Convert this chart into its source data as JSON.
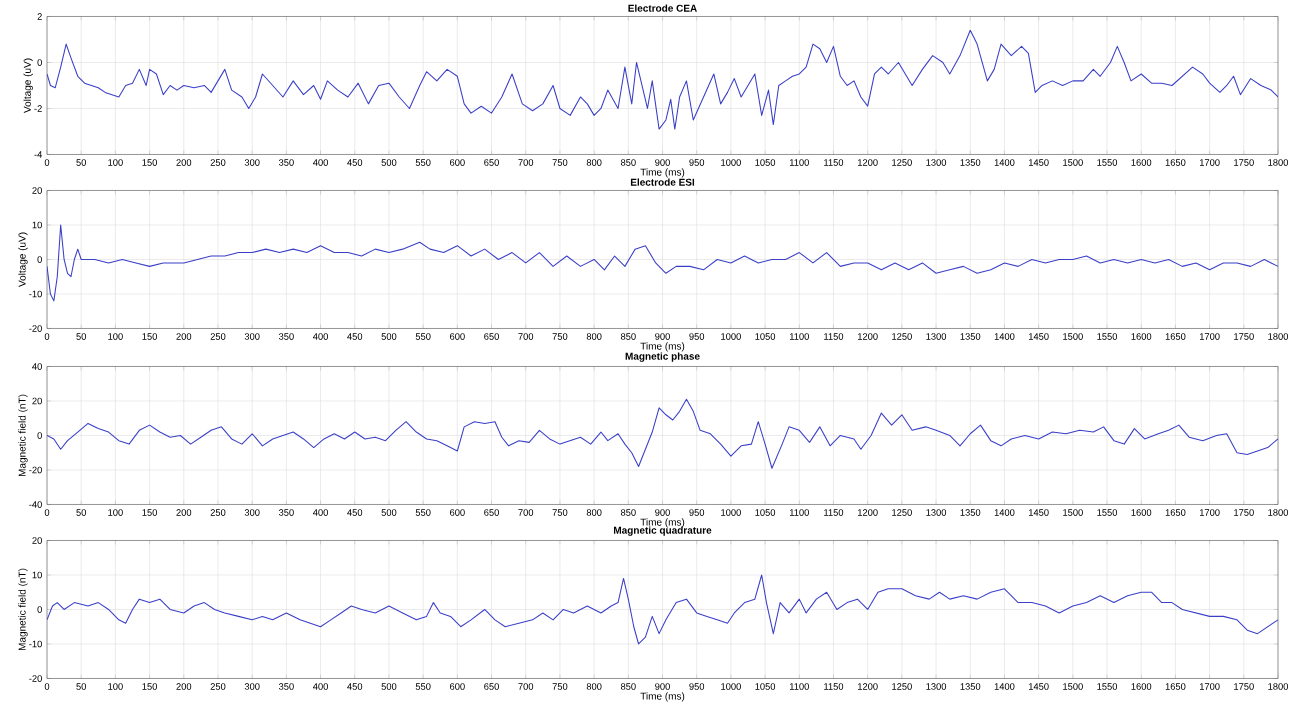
{
  "chart_data": [
    {
      "type": "line",
      "title": "Electrode CEA",
      "xlabel": "Time (ms)",
      "ylabel": "Voltage (uV)",
      "xlim": [
        0,
        1800
      ],
      "xticks": [
        0,
        50,
        100,
        150,
        200,
        250,
        300,
        350,
        400,
        450,
        500,
        550,
        600,
        650,
        700,
        750,
        800,
        850,
        900,
        950,
        1000,
        1050,
        1100,
        1150,
        1200,
        1250,
        1300,
        1350,
        1400,
        1450,
        1500,
        1550,
        1600,
        1650,
        1700,
        1750,
        1800
      ],
      "ylim": [
        -4,
        2
      ],
      "yticks": [
        -4,
        -2,
        0,
        2
      ],
      "grid": true,
      "series": [
        {
          "color": "#3a3fc8",
          "x": [
            0,
            5,
            12,
            20,
            28,
            35,
            45,
            55,
            65,
            75,
            85,
            95,
            105,
            115,
            125,
            135,
            145,
            150,
            160,
            170,
            180,
            190,
            200,
            215,
            230,
            240,
            250,
            260,
            270,
            285,
            295,
            305,
            315,
            330,
            345,
            360,
            375,
            390,
            400,
            410,
            425,
            440,
            455,
            470,
            485,
            500,
            515,
            530,
            545,
            555,
            570,
            585,
            600,
            610,
            620,
            635,
            650,
            665,
            680,
            695,
            710,
            725,
            740,
            750,
            765,
            780,
            790,
            800,
            810,
            820,
            835,
            845,
            855,
            862,
            870,
            878,
            885,
            895,
            905,
            912,
            918,
            925,
            935,
            945,
            960,
            975,
            985,
            995,
            1005,
            1015,
            1025,
            1035,
            1045,
            1055,
            1062,
            1070,
            1080,
            1090,
            1100,
            1110,
            1120,
            1130,
            1140,
            1150,
            1160,
            1170,
            1180,
            1190,
            1200,
            1210,
            1220,
            1230,
            1245,
            1255,
            1265,
            1280,
            1295,
            1310,
            1320,
            1335,
            1350,
            1360,
            1375,
            1385,
            1395,
            1410,
            1425,
            1435,
            1445,
            1455,
            1470,
            1485,
            1500,
            1515,
            1530,
            1540,
            1555,
            1565,
            1575,
            1585,
            1600,
            1615,
            1630,
            1645,
            1660,
            1675,
            1690,
            1700,
            1715,
            1725,
            1735,
            1745,
            1760,
            1775,
            1790,
            1800
          ],
          "values": [
            -0.5,
            -1.0,
            -1.1,
            -0.2,
            0.8,
            0.2,
            -0.6,
            -0.9,
            -1.0,
            -1.1,
            -1.3,
            -1.4,
            -1.5,
            -1.0,
            -0.9,
            -0.3,
            -1.0,
            -0.3,
            -0.5,
            -1.4,
            -1.0,
            -1.2,
            -1.0,
            -1.1,
            -1.0,
            -1.3,
            -0.8,
            -0.3,
            -1.2,
            -1.5,
            -2.0,
            -1.5,
            -0.5,
            -1.0,
            -1.5,
            -0.8,
            -1.4,
            -1.0,
            -1.6,
            -0.8,
            -1.2,
            -1.5,
            -0.9,
            -1.8,
            -1.0,
            -0.9,
            -1.5,
            -2.0,
            -1.0,
            -0.4,
            -0.8,
            -0.3,
            -0.6,
            -1.8,
            -2.2,
            -1.9,
            -2.2,
            -1.5,
            -0.5,
            -1.8,
            -2.1,
            -1.8,
            -1.0,
            -2.0,
            -2.3,
            -1.5,
            -1.8,
            -2.3,
            -2.0,
            -1.2,
            -2.0,
            -0.2,
            -1.8,
            0.0,
            -1.0,
            -2.0,
            -0.8,
            -2.9,
            -2.5,
            -1.6,
            -2.9,
            -1.5,
            -0.8,
            -2.5,
            -1.5,
            -0.5,
            -1.8,
            -1.3,
            -0.7,
            -1.5,
            -1.0,
            -0.5,
            -2.3,
            -1.2,
            -2.7,
            -1.0,
            -0.8,
            -0.6,
            -0.5,
            -0.2,
            0.8,
            0.6,
            0.0,
            0.7,
            -0.6,
            -1.0,
            -0.8,
            -1.5,
            -1.9,
            -0.5,
            -0.2,
            -0.5,
            0.0,
            -0.5,
            -1.0,
            -0.3,
            0.3,
            0.0,
            -0.5,
            0.3,
            1.4,
            0.8,
            -0.8,
            -0.3,
            0.8,
            0.3,
            0.7,
            0.4,
            -1.3,
            -1.0,
            -0.8,
            -1.0,
            -0.8,
            -0.8,
            -0.3,
            -0.6,
            0.0,
            0.7,
            0.0,
            -0.8,
            -0.5,
            -0.9,
            -0.9,
            -1.0,
            -0.6,
            -0.2,
            -0.5,
            -0.9,
            -1.3,
            -1.0,
            -0.6,
            -1.4,
            -0.7,
            -1.0,
            -1.2,
            -1.5
          ]
        }
      ]
    },
    {
      "type": "line",
      "title": "Electrode ESI",
      "xlabel": "Time (ms)",
      "ylabel": "Voltage (uV)",
      "xlim": [
        0,
        1800
      ],
      "xticks": [
        0,
        50,
        100,
        150,
        200,
        250,
        300,
        350,
        400,
        450,
        500,
        550,
        600,
        650,
        700,
        750,
        800,
        850,
        900,
        950,
        1000,
        1050,
        1100,
        1150,
        1200,
        1250,
        1300,
        1350,
        1400,
        1450,
        1500,
        1550,
        1600,
        1650,
        1700,
        1750,
        1800
      ],
      "ylim": [
        -20,
        20
      ],
      "yticks": [
        -20,
        -10,
        0,
        10,
        20
      ],
      "grid": true,
      "series": [
        {
          "color": "#3a3fc8",
          "x": [
            0,
            5,
            10,
            15,
            20,
            25,
            30,
            35,
            40,
            45,
            50,
            70,
            90,
            110,
            130,
            150,
            170,
            200,
            220,
            240,
            260,
            280,
            300,
            320,
            340,
            360,
            380,
            400,
            420,
            440,
            460,
            480,
            500,
            520,
            545,
            560,
            580,
            600,
            620,
            640,
            660,
            680,
            700,
            720,
            740,
            760,
            780,
            800,
            815,
            830,
            845,
            860,
            875,
            890,
            905,
            920,
            940,
            960,
            980,
            1000,
            1020,
            1040,
            1060,
            1080,
            1100,
            1120,
            1140,
            1160,
            1180,
            1200,
            1220,
            1240,
            1260,
            1280,
            1300,
            1320,
            1340,
            1360,
            1380,
            1400,
            1420,
            1440,
            1460,
            1480,
            1500,
            1520,
            1540,
            1560,
            1580,
            1600,
            1620,
            1640,
            1660,
            1680,
            1700,
            1720,
            1740,
            1760,
            1780,
            1790,
            1800
          ],
          "values": [
            -2,
            -10,
            -12,
            -5,
            10,
            0,
            -4,
            -5,
            0,
            3,
            0,
            0,
            -1,
            0,
            -1,
            -2,
            -1,
            -1,
            0,
            1,
            1,
            2,
            2,
            3,
            2,
            3,
            2,
            4,
            2,
            2,
            1,
            3,
            2,
            3,
            5,
            3,
            2,
            4,
            1,
            3,
            0,
            2,
            -1,
            2,
            -2,
            1,
            -2,
            0,
            -3,
            1,
            -2,
            3,
            4,
            -1,
            -4,
            -2,
            -2,
            -3,
            0,
            -1,
            1,
            -1,
            0,
            0,
            2,
            -1,
            2,
            -2,
            -1,
            -1,
            -3,
            -1,
            -3,
            -1,
            -4,
            -3,
            -2,
            -4,
            -3,
            -1,
            -2,
            0,
            -1,
            0,
            0,
            1,
            -1,
            0,
            -1,
            0,
            -1,
            0,
            -2,
            -1,
            -3,
            -1,
            -1,
            -2,
            0,
            -1,
            -2
          ]
        }
      ]
    },
    {
      "type": "line",
      "title": "Magnetic phase",
      "xlabel": "Time (ms)",
      "ylabel": "Magnetic field (nT)",
      "xlim": [
        0,
        1800
      ],
      "xticks": [
        0,
        50,
        100,
        150,
        200,
        250,
        300,
        350,
        400,
        450,
        500,
        550,
        600,
        650,
        700,
        750,
        800,
        850,
        900,
        950,
        1000,
        1050,
        1100,
        1150,
        1200,
        1250,
        1300,
        1350,
        1400,
        1450,
        1500,
        1550,
        1600,
        1650,
        1700,
        1750,
        1800
      ],
      "ylim": [
        -40,
        40
      ],
      "yticks": [
        -40,
        -20,
        0,
        20,
        40
      ],
      "grid": true,
      "series": [
        {
          "color": "#3a3fc8",
          "x": [
            0,
            10,
            20,
            30,
            45,
            60,
            75,
            90,
            105,
            120,
            135,
            150,
            165,
            180,
            195,
            210,
            225,
            240,
            255,
            270,
            285,
            300,
            315,
            330,
            345,
            360,
            375,
            390,
            405,
            420,
            435,
            450,
            465,
            480,
            495,
            510,
            525,
            540,
            555,
            570,
            585,
            600,
            610,
            625,
            640,
            655,
            665,
            675,
            690,
            705,
            720,
            735,
            750,
            765,
            780,
            795,
            810,
            820,
            835,
            845,
            855,
            865,
            875,
            885,
            895,
            905,
            915,
            925,
            935,
            945,
            955,
            970,
            985,
            1000,
            1015,
            1030,
            1040,
            1050,
            1060,
            1075,
            1085,
            1100,
            1115,
            1130,
            1145,
            1160,
            1180,
            1190,
            1205,
            1220,
            1235,
            1250,
            1265,
            1285,
            1300,
            1320,
            1335,
            1350,
            1365,
            1380,
            1395,
            1410,
            1430,
            1450,
            1470,
            1490,
            1510,
            1530,
            1545,
            1560,
            1575,
            1590,
            1605,
            1625,
            1640,
            1655,
            1670,
            1690,
            1710,
            1725,
            1740,
            1755,
            1770,
            1785,
            1800
          ],
          "values": [
            0,
            -2,
            -8,
            -3,
            2,
            7,
            4,
            2,
            -3,
            -5,
            3,
            6,
            2,
            -1,
            0,
            -5,
            -1,
            3,
            5,
            -2,
            -5,
            1,
            -6,
            -2,
            0,
            2,
            -2,
            -7,
            -2,
            1,
            -2,
            2,
            -2,
            -1,
            -3,
            3,
            8,
            2,
            -2,
            -3,
            -6,
            -9,
            5,
            8,
            7,
            8,
            -1,
            -6,
            -3,
            -4,
            3,
            -2,
            -5,
            -3,
            -1,
            -5,
            2,
            -3,
            1,
            -5,
            -10,
            -18,
            -8,
            2,
            16,
            12,
            9,
            14,
            21,
            14,
            3,
            1,
            -5,
            -12,
            -6,
            -5,
            8,
            -5,
            -19,
            -5,
            5,
            3,
            -4,
            5,
            -6,
            0,
            -2,
            -8,
            0,
            13,
            6,
            12,
            3,
            5,
            3,
            0,
            -6,
            1,
            6,
            -3,
            -6,
            -2,
            0,
            -2,
            2,
            1,
            3,
            2,
            5,
            -3,
            -5,
            4,
            -2,
            1,
            3,
            6,
            -1,
            -3,
            0,
            1,
            -10,
            -11,
            -9,
            -7,
            -2
          ]
        }
      ]
    },
    {
      "type": "line",
      "title": "Magnetic quadrature",
      "xlabel": "Time (ms)",
      "ylabel": "Magnetic field (nT)",
      "xlim": [
        0,
        1800
      ],
      "xticks": [
        0,
        50,
        100,
        150,
        200,
        250,
        300,
        350,
        400,
        450,
        500,
        550,
        600,
        650,
        700,
        750,
        800,
        850,
        900,
        950,
        1000,
        1050,
        1100,
        1150,
        1200,
        1250,
        1300,
        1350,
        1400,
        1450,
        1500,
        1550,
        1600,
        1650,
        1700,
        1750,
        1800
      ],
      "ylim": [
        -20,
        20
      ],
      "yticks": [
        -20,
        -10,
        0,
        10,
        20
      ],
      "grid": true,
      "series": [
        {
          "color": "#3a3fc8",
          "x": [
            0,
            8,
            15,
            25,
            40,
            60,
            75,
            90,
            105,
            115,
            125,
            135,
            150,
            165,
            180,
            200,
            215,
            230,
            245,
            260,
            280,
            300,
            315,
            330,
            350,
            370,
            385,
            400,
            415,
            430,
            445,
            460,
            480,
            500,
            520,
            540,
            555,
            565,
            575,
            590,
            605,
            620,
            640,
            655,
            670,
            690,
            710,
            725,
            740,
            755,
            770,
            790,
            810,
            825,
            835,
            843,
            850,
            858,
            865,
            875,
            885,
            895,
            905,
            920,
            935,
            950,
            965,
            980,
            995,
            1005,
            1020,
            1035,
            1045,
            1052,
            1062,
            1072,
            1085,
            1100,
            1110,
            1125,
            1140,
            1155,
            1170,
            1185,
            1200,
            1215,
            1230,
            1250,
            1270,
            1290,
            1305,
            1320,
            1340,
            1360,
            1380,
            1400,
            1420,
            1440,
            1460,
            1480,
            1500,
            1520,
            1540,
            1560,
            1580,
            1600,
            1615,
            1630,
            1645,
            1660,
            1680,
            1700,
            1720,
            1740,
            1755,
            1770,
            1785,
            1800
          ],
          "values": [
            -3,
            1,
            2,
            0,
            2,
            1,
            2,
            0,
            -3,
            -4,
            0,
            3,
            2,
            3,
            0,
            -1,
            1,
            2,
            0,
            -1,
            -2,
            -3,
            -2,
            -3,
            -1,
            -3,
            -4,
            -5,
            -3,
            -1,
            1,
            0,
            -1,
            1,
            -1,
            -3,
            -2,
            2,
            -1,
            -2,
            -5,
            -3,
            0,
            -3,
            -5,
            -4,
            -3,
            -1,
            -3,
            0,
            -1,
            1,
            -1,
            1,
            2,
            9,
            3,
            -5,
            -10,
            -8,
            -2,
            -7,
            -3,
            2,
            3,
            -1,
            -2,
            -3,
            -4,
            -1,
            2,
            3,
            10,
            2,
            -7,
            2,
            -1,
            3,
            -1,
            3,
            5,
            0,
            2,
            3,
            0,
            5,
            6,
            6,
            4,
            3,
            5,
            3,
            4,
            3,
            5,
            6,
            2,
            2,
            1,
            -1,
            1,
            2,
            4,
            2,
            4,
            5,
            5,
            2,
            2,
            0,
            -1,
            -2,
            -2,
            -3,
            -6,
            -7,
            -5,
            -3
          ]
        }
      ]
    }
  ]
}
